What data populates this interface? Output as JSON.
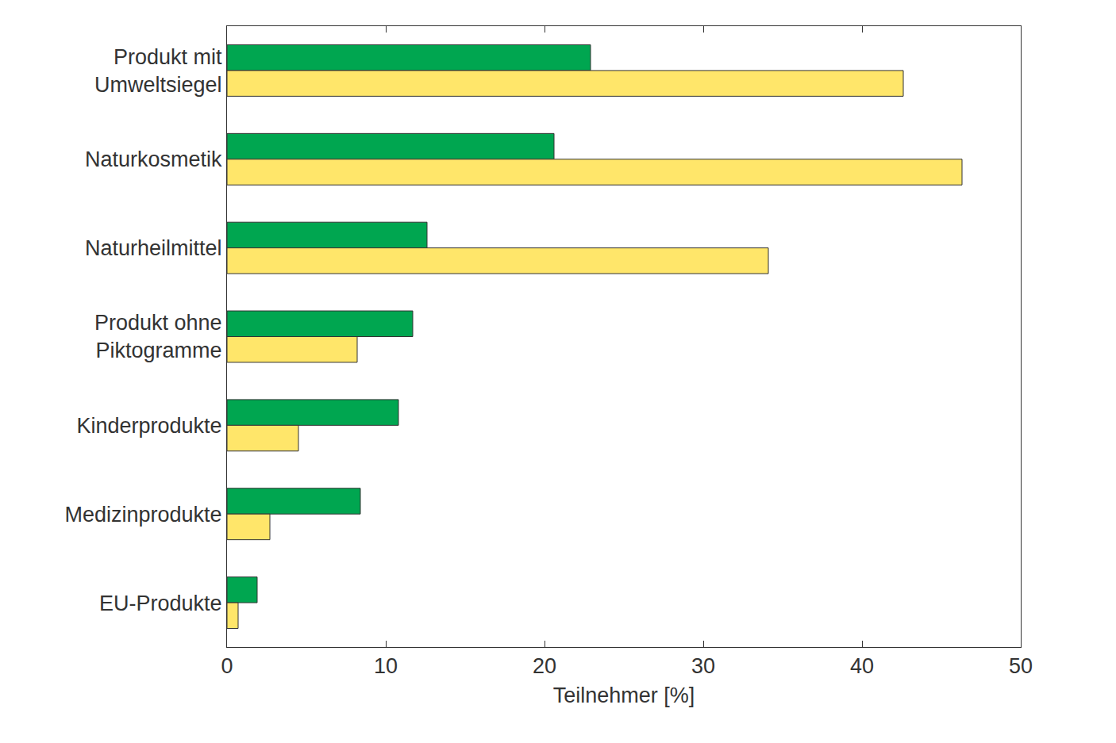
{
  "chart_data": {
    "type": "bar",
    "orientation": "horizontal",
    "x_label": "Teilnehmer [%]",
    "categories": [
      "Produkt mit\nUmweltsiegel",
      "Naturkosmetik",
      "Naturheilmittel",
      "Produkt ohne\nPiktogramme",
      "Kinderprodukte",
      "Medizinprodukte",
      "EU-Produkte"
    ],
    "series": [
      {
        "color": "#00a650",
        "values": [
          22.9,
          20.6,
          12.6,
          11.7,
          10.8,
          8.4,
          1.9
        ]
      },
      {
        "color": "#ffe66a",
        "values": [
          42.6,
          46.3,
          34.1,
          8.2,
          4.5,
          2.7,
          0.7
        ]
      }
    ],
    "xlim": [
      0,
      50
    ],
    "xticks": [
      0,
      10,
      20,
      30,
      40,
      50
    ],
    "grid": false
  }
}
